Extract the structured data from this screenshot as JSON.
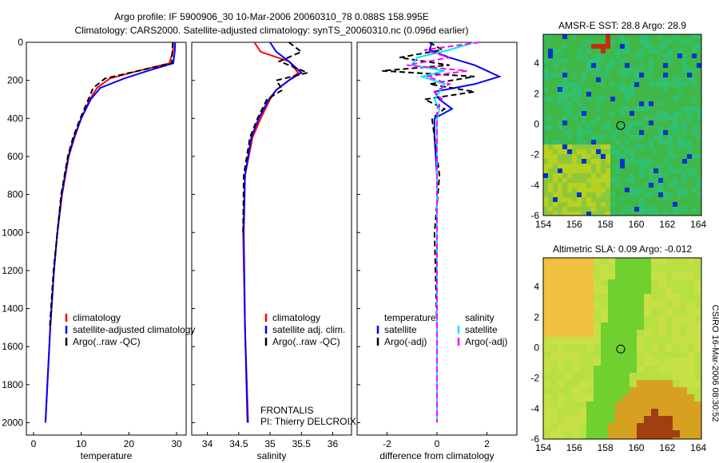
{
  "title_line1": "Argo profile: IF 5900906_30 10-Mar-2006 20060310_78 0.088S 158.995E",
  "title_line2": "Climatology: CARS2000. Satellite-adjusted climatology: synTS_20060310.nc (0.096d earlier)",
  "side_label": "CSIRO 16-Mar-2006 08:30:52",
  "colors": {
    "climatology": "#ff0000",
    "satellite": "#0000ff",
    "argo": "#000000",
    "sal_sat": "#00e5ff",
    "sal_argo": "#ff00ff"
  },
  "chart_data": [
    {
      "type": "line",
      "xlabel": "temperature",
      "xlim": [
        -1.5,
        32
      ],
      "xticks": [
        0,
        10,
        20,
        30
      ],
      "ylim": [
        0,
        2065
      ],
      "yticks": [
        0,
        200,
        400,
        600,
        800,
        1000,
        1200,
        1400,
        1600,
        1800,
        2000
      ],
      "yreverse": true,
      "legend": [
        "climatology",
        "satellite-adjusted climatology",
        "Argo(..raw -QC)"
      ],
      "depth": [
        0,
        50,
        110,
        150,
        190,
        240,
        300,
        400,
        500,
        600,
        800,
        1000,
        1200,
        1500,
        1800,
        2000
      ],
      "series": [
        {
          "name": "climatology",
          "color": "#ff0000",
          "values": [
            29.3,
            29.2,
            28.5,
            22,
            16,
            13.3,
            11.8,
            10,
            8.6,
            7.4,
            6.0,
            5.0,
            4.3,
            3.5,
            2.9,
            2.5
          ]
        },
        {
          "name": "satellite-adjusted climatology",
          "color": "#0000ff",
          "values": [
            29.7,
            29.6,
            29.3,
            24,
            19,
            14,
            12,
            10,
            8.5,
            7.3,
            5.9,
            5.0,
            4.3,
            3.5,
            2.9,
            2.5
          ]
        },
        {
          "name": "Argo(..raw -QC)",
          "color": "#000000",
          "dash": true,
          "values": [
            29.2,
            29.1,
            29,
            22,
            15,
            12.5,
            11.5,
            9.8,
            8.3,
            7.2,
            5.8,
            5.0,
            4.2,
            3.4,
            null,
            null
          ]
        }
      ]
    },
    {
      "type": "line",
      "xlabel": "salinity",
      "xlim": [
        33.75,
        36.3
      ],
      "xticks": [
        34,
        34.5,
        35,
        35.5,
        36
      ],
      "ylim": [
        0,
        2065
      ],
      "yreverse": true,
      "legend": [
        "climatology",
        "satellite adj. clim.",
        "Argo(..raw -QC)"
      ],
      "annotations": [
        "FRONTALIS",
        "PI: Thierry DELCROIX"
      ],
      "depth": [
        0,
        50,
        100,
        160,
        200,
        250,
        300,
        400,
        500,
        700,
        1000,
        1500,
        2000
      ],
      "series": [
        {
          "name": "climatology",
          "color": "#ff0000",
          "values": [
            34.75,
            34.85,
            35.3,
            35.45,
            35.3,
            35.1,
            35.0,
            34.85,
            34.72,
            34.6,
            34.57,
            34.6,
            34.65
          ]
        },
        {
          "name": "satellite adj. clim.",
          "color": "#0000ff",
          "values": [
            35.0,
            35.1,
            35.3,
            35.5,
            35.3,
            35.1,
            34.98,
            34.82,
            34.7,
            34.6,
            34.58,
            34.6,
            34.64
          ]
        },
        {
          "name": "Argo(..raw -QC)",
          "color": "#000000",
          "dash": true,
          "values": [
            35.3,
            35.5,
            35.15,
            35.6,
            35.1,
            35.2,
            34.95,
            34.8,
            34.68,
            34.58,
            34.57,
            null,
            null
          ]
        }
      ]
    },
    {
      "type": "line",
      "xlabel": "difference from climatology",
      "xlim": [
        -3.2,
        3.2
      ],
      "xticks": [
        -2,
        0,
        2
      ],
      "ylim": [
        0,
        2065
      ],
      "yreverse": true,
      "legend_headers": [
        "temperature",
        "salinity"
      ],
      "legend": [
        "satellite",
        "Argo(-adj)",
        "satellite",
        "Argo(-adj)"
      ],
      "depth": [
        0,
        40,
        80,
        120,
        150,
        180,
        220,
        260,
        300,
        350,
        400,
        500,
        700,
        1000,
        1500,
        2000
      ],
      "series": [
        {
          "name": "temperature satellite",
          "color": "#0000ff",
          "values": [
            -0.2,
            -0.3,
            0.5,
            1.5,
            2,
            2.5,
            1.5,
            -0.1,
            0.1,
            0.6,
            -0.1,
            -0.1,
            0,
            0,
            0,
            0
          ]
        },
        {
          "name": "temperature Argo(-adj)",
          "color": "#000000",
          "dash": true,
          "values": [
            -0.3,
            0.2,
            -1.5,
            0.5,
            -2.2,
            1.5,
            -0.3,
            1.5,
            -0.5,
            0.3,
            -0.2,
            -0.1,
            0.1,
            -0.1,
            0,
            0
          ]
        },
        {
          "name": "salinity satellite",
          "color": "#00e5ff",
          "values": [
            1.5,
            0.5,
            -0.8,
            -1.0,
            0.3,
            -0.6,
            0.3,
            0.1,
            -0.1,
            0.1,
            0,
            0,
            0,
            0,
            0,
            0
          ]
        },
        {
          "name": "salinity Argo(-adj)",
          "color": "#ff00ff",
          "dash": true,
          "values": [
            1.7,
            -0.5,
            0.5,
            -1.2,
            1.2,
            -0.4,
            0.5,
            -0.1,
            0.2,
            0,
            0,
            0,
            0,
            0,
            0,
            0
          ]
        }
      ]
    }
  ],
  "maps": [
    {
      "title": "AMSR-E SST: 28.8 Argo: 28.9",
      "xticks": [
        154,
        156,
        158,
        160,
        162,
        164
      ],
      "yticks": [
        4,
        2,
        0,
        -2,
        -4,
        -6
      ],
      "lonlim": [
        154,
        164.2
      ],
      "latlim": [
        -6,
        5.9
      ],
      "marker": [
        158.995,
        -0.088
      ],
      "palette": "sst"
    },
    {
      "title": "Altimetric SLA: 0.09 Argo: -0.012",
      "xticks": [
        154,
        156,
        158,
        160,
        162,
        164
      ],
      "yticks": [
        4,
        2,
        0,
        -2,
        -4,
        -6
      ],
      "lonlim": [
        154,
        164.2
      ],
      "latlim": [
        -6,
        5.9
      ],
      "marker": [
        158.995,
        -0.088
      ],
      "palette": "sla"
    }
  ]
}
